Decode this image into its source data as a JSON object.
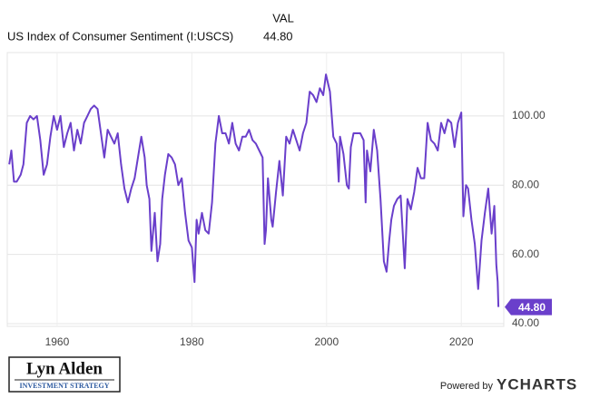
{
  "chart_data": {
    "type": "line",
    "legend_header": "VAL",
    "series": [
      {
        "name": "US Index of Consumer Sentiment (I:USCS)",
        "color": "#6a3fcb",
        "last_label": "44.80",
        "x": [
          1952.9,
          1953.2,
          1953.6,
          1954,
          1954.6,
          1955,
          1955.5,
          1956,
          1956.5,
          1957,
          1957.5,
          1958,
          1958.5,
          1959,
          1959.5,
          1960,
          1960.5,
          1961,
          1961.5,
          1962,
          1962.5,
          1963,
          1963.5,
          1964,
          1964.5,
          1965,
          1965.5,
          1966,
          1966.5,
          1967,
          1967.5,
          1968,
          1968.5,
          1969,
          1969.5,
          1970,
          1970.5,
          1971,
          1971.5,
          1972,
          1972.5,
          1973,
          1973.3,
          1973.7,
          1974,
          1974.5,
          1974.9,
          1975.3,
          1975.6,
          1976,
          1976.5,
          1977,
          1977.5,
          1978,
          1978.5,
          1979,
          1979.5,
          1980,
          1980.4,
          1980.7,
          1981,
          1981.5,
          1982,
          1982.5,
          1983,
          1983.5,
          1984,
          1984.5,
          1985,
          1985.5,
          1986,
          1986.5,
          1987,
          1987.5,
          1988,
          1988.5,
          1989,
          1989.5,
          1990,
          1990.5,
          1990.8,
          1991,
          1991.3,
          1991.8,
          1992,
          1992.5,
          1993,
          1993.5,
          1994,
          1994.5,
          1995,
          1995.5,
          1996,
          1996.5,
          1997,
          1997.5,
          1998,
          1998.5,
          1999,
          1999.5,
          1999.9,
          2000.5,
          2001,
          2001.5,
          2001.8,
          2002,
          2002.5,
          2003,
          2003.3,
          2003.6,
          2004,
          2004.5,
          2005,
          2005.5,
          2005.8,
          2006,
          2006.5,
          2007,
          2007.5,
          2008,
          2008.5,
          2008.9,
          2009.3,
          2009.6,
          2010,
          2010.5,
          2011,
          2011.6,
          2012,
          2012.5,
          2013,
          2013.5,
          2014,
          2014.5,
          2015,
          2015.5,
          2016,
          2016.5,
          2017,
          2017.5,
          2018,
          2018.5,
          2019,
          2019.5,
          2020,
          2020.3,
          2020.7,
          2021,
          2021.5,
          2022,
          2022.5,
          2023,
          2023.5,
          2024,
          2024.5,
          2024.9,
          2025.2,
          2025.4,
          2025.5
        ],
        "values": [
          86,
          90,
          81,
          81,
          83,
          86,
          98,
          100,
          99,
          100,
          93,
          83,
          86,
          94,
          100,
          96,
          100,
          91,
          95,
          98,
          90,
          96,
          92,
          98,
          100,
          102,
          103,
          102,
          95,
          88,
          96,
          94,
          92,
          95,
          86,
          79,
          75,
          79,
          82,
          88,
          94,
          88,
          80,
          76,
          61,
          72,
          58,
          63,
          76,
          83,
          89,
          88,
          86,
          80,
          82,
          72,
          64,
          62,
          52,
          70,
          66,
          72,
          67,
          66,
          75,
          92,
          100,
          95,
          95,
          92,
          98,
          92,
          90,
          94,
          94,
          96,
          93,
          92,
          90,
          88,
          63,
          67,
          82,
          70,
          68,
          78,
          87,
          77,
          94,
          92,
          96,
          93,
          90,
          95,
          98,
          107,
          106,
          104,
          108,
          106,
          112,
          107,
          94,
          92,
          81,
          94,
          89,
          80,
          79,
          91,
          95,
          95,
          95,
          93,
          75,
          90,
          84,
          96,
          90,
          76,
          58,
          55,
          64,
          70,
          74,
          76,
          77,
          56,
          76,
          73,
          78,
          85,
          82,
          82,
          98,
          93,
          92,
          90,
          98,
          95,
          99,
          98,
          91,
          98,
          101,
          71,
          80,
          79,
          70,
          63,
          50,
          64,
          72,
          79,
          66,
          74,
          57,
          52,
          44.8
        ]
      }
    ],
    "xlim": [
      1952.6,
      2026.3
    ],
    "ylim": [
      39.2,
      118.3
    ],
    "xticks": [
      1960,
      1980,
      2000,
      2020
    ],
    "yticks": [
      {
        "value": 40,
        "label": "40.00"
      },
      {
        "value": 60,
        "label": "60.00"
      },
      {
        "value": 80,
        "label": "80.00"
      },
      {
        "value": 100,
        "label": "100.00"
      }
    ],
    "grid": true
  },
  "branding": {
    "logo_title": "Lyn Alden",
    "logo_subtitle": "INVESTMENT STRATEGY",
    "powered_by": "Powered by",
    "provider": "YCHARTS"
  }
}
